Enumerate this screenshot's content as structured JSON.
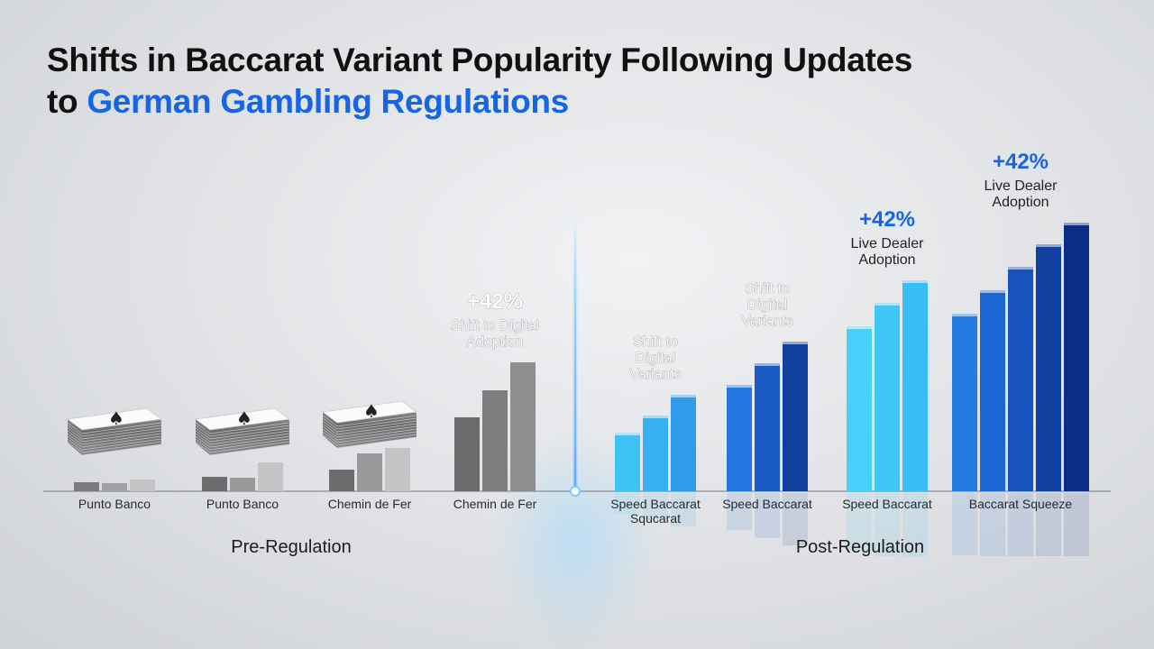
{
  "title": {
    "line1": "Shifts in Baccarat Variant Popularity Following Updates",
    "line2_prefix": "to ",
    "line2_accent": "German Gambling Regulations"
  },
  "colors": {
    "accent": "#1565e6",
    "pre_gray_light": "#a9a9ab",
    "pre_gray_dark": "#5a5a5c",
    "post_light": "#3fc3f5",
    "post_mid": "#1f6fe0",
    "post_dark": "#0b2a82"
  },
  "chart_data": {
    "type": "bar",
    "groups": [
      "Pre-Regulation",
      "Post-Regulation"
    ],
    "categories": [
      {
        "label": "Punto Banco",
        "group": "Pre-Regulation",
        "values": [
          10,
          9,
          13
        ],
        "icon": "card-stack-icon"
      },
      {
        "label": "Punto Banco",
        "group": "Pre-Regulation",
        "values": [
          16,
          15,
          32
        ],
        "icon": "card-stack-icon"
      },
      {
        "label": "Chemin de Fer",
        "group": "Pre-Regulation",
        "values": [
          24,
          42,
          48
        ],
        "icon": "card-stack-icon"
      },
      {
        "label": "Chemin de Fer",
        "group": "Pre-Regulation",
        "values": [
          82,
          112,
          143
        ],
        "annotation": {
          "value": "+42%",
          "text": [
            "Shift to Digital",
            "Adoption"
          ]
        }
      },
      {
        "label": [
          "Speed Baccarat",
          "Squcarat"
        ],
        "group": "Post-Regulation",
        "values": [
          65,
          84,
          107
        ],
        "annotation": {
          "value": "",
          "text": [
            "Shift to",
            "Digital",
            "Variants"
          ]
        }
      },
      {
        "label": "Speed Baccarat",
        "group": "Post-Regulation",
        "values": [
          118,
          142,
          166
        ],
        "annotation": {
          "value": "",
          "text": [
            "Shift to",
            "Digital",
            "Variants"
          ]
        }
      },
      {
        "label": "Speed Baccarat",
        "group": "Post-Regulation",
        "values": [
          183,
          209,
          234
        ],
        "annotation": {
          "value": "+42%",
          "text": [
            "Live Dealer",
            "Adoption"
          ]
        }
      },
      {
        "label": "Baccarat Squeeze",
        "group": "Post-Regulation",
        "values": [
          197,
          223,
          249,
          274,
          298
        ],
        "annotation": {
          "value": "+42%",
          "text": [
            "Live Dealer",
            "Adoption"
          ]
        }
      }
    ]
  }
}
